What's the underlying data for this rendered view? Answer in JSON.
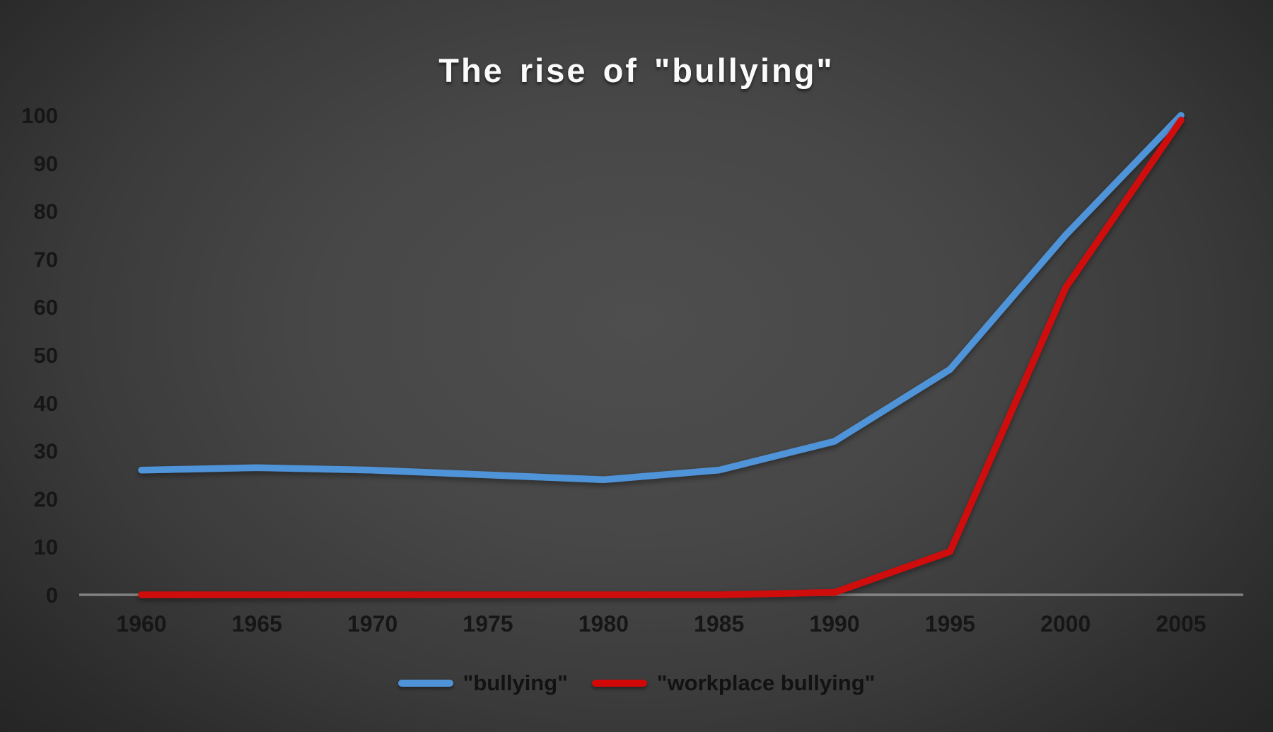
{
  "chart_data": {
    "type": "line",
    "title": "The rise of \"bullying\"",
    "xlabel": "",
    "ylabel": "",
    "x": [
      1960,
      1965,
      1970,
      1975,
      1980,
      1985,
      1990,
      1995,
      2000,
      2005
    ],
    "series": [
      {
        "name": "\"bullying\"",
        "color": "#4f94d9",
        "values": [
          26,
          26.5,
          26,
          25,
          24,
          26,
          32,
          47,
          75,
          100
        ]
      },
      {
        "name": "\"workplace bullying\"",
        "color": "#d00808",
        "values": [
          0,
          0,
          0,
          0,
          0,
          0,
          0.5,
          9,
          64,
          99
        ]
      }
    ],
    "ylim": [
      0,
      100
    ],
    "yticks": [
      0,
      10,
      20,
      30,
      40,
      50,
      60,
      70,
      80,
      90,
      100
    ],
    "grid": false,
    "legend_position": "bottom"
  },
  "style": {
    "background_center": "#4e4e4e",
    "background_edge": "#222222",
    "axis_line_color": "#9d9d9d",
    "tick_text_color": "#161616",
    "title_text_color": "#fafafa",
    "legend_text_color": "#121212"
  }
}
